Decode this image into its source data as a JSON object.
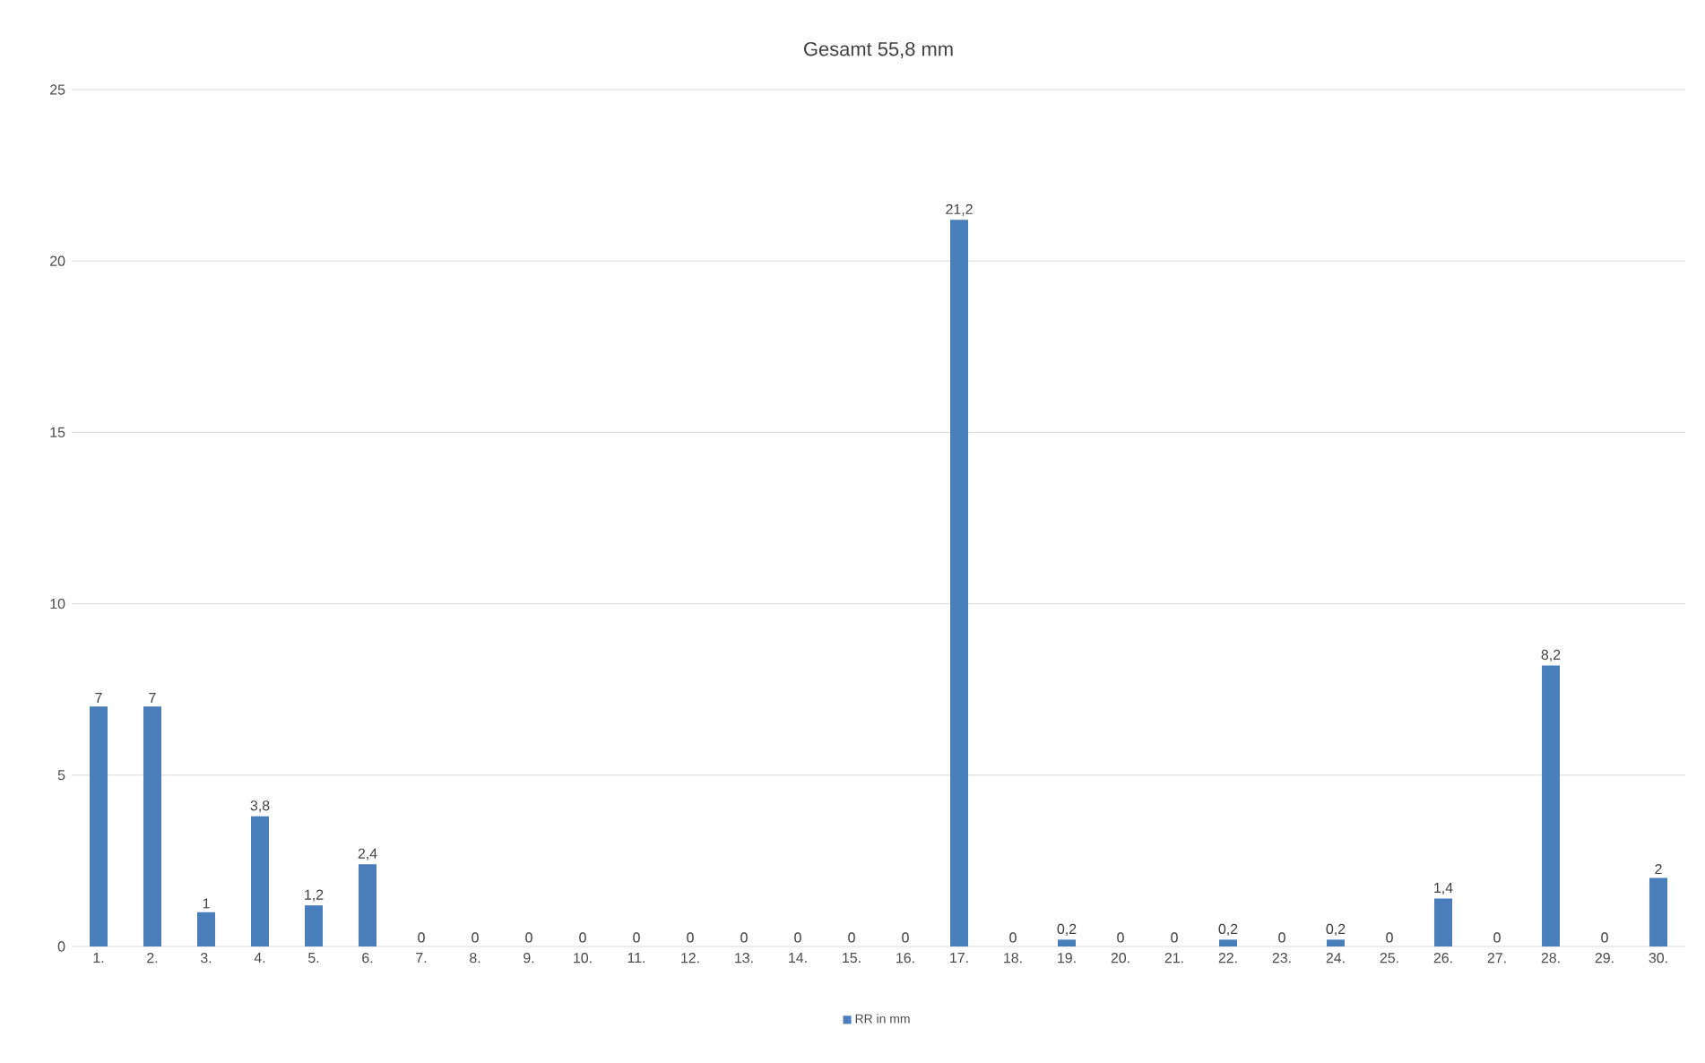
{
  "chart_data": {
    "type": "bar",
    "title": "Gesamt 55,8 mm",
    "categories": [
      "1.",
      "2.",
      "3.",
      "4.",
      "5.",
      "6.",
      "7.",
      "8.",
      "9.",
      "10.",
      "11.",
      "12.",
      "13.",
      "14.",
      "15.",
      "16.",
      "17.",
      "18.",
      "19.",
      "20.",
      "21.",
      "22.",
      "23.",
      "24.",
      "25.",
      "26.",
      "27.",
      "28.",
      "29.",
      "30."
    ],
    "series": [
      {
        "name": "RR in mm",
        "color": "#4a7ebb",
        "values": [
          7,
          7,
          1,
          3.8,
          1.2,
          2.4,
          0,
          0,
          0,
          0,
          0,
          0,
          0,
          0,
          0,
          0,
          21.2,
          0,
          0.2,
          0,
          0,
          0.2,
          0,
          0.2,
          0,
          1.4,
          0,
          8.2,
          0,
          2
        ],
        "value_labels": [
          "7",
          "7",
          "1",
          "3,8",
          "1,2",
          "2,4",
          "0",
          "0",
          "0",
          "0",
          "0",
          "0",
          "0",
          "0",
          "0",
          "0",
          "21,2",
          "0",
          "0,2",
          "0",
          "0",
          "0,2",
          "0",
          "0,2",
          "0",
          "1,4",
          "0",
          "8,2",
          "0",
          "2"
        ]
      }
    ],
    "ylim": [
      0,
      25
    ],
    "yticks": [
      0,
      5,
      10,
      15,
      20,
      25
    ],
    "grid": "y",
    "legend": "bottom"
  }
}
